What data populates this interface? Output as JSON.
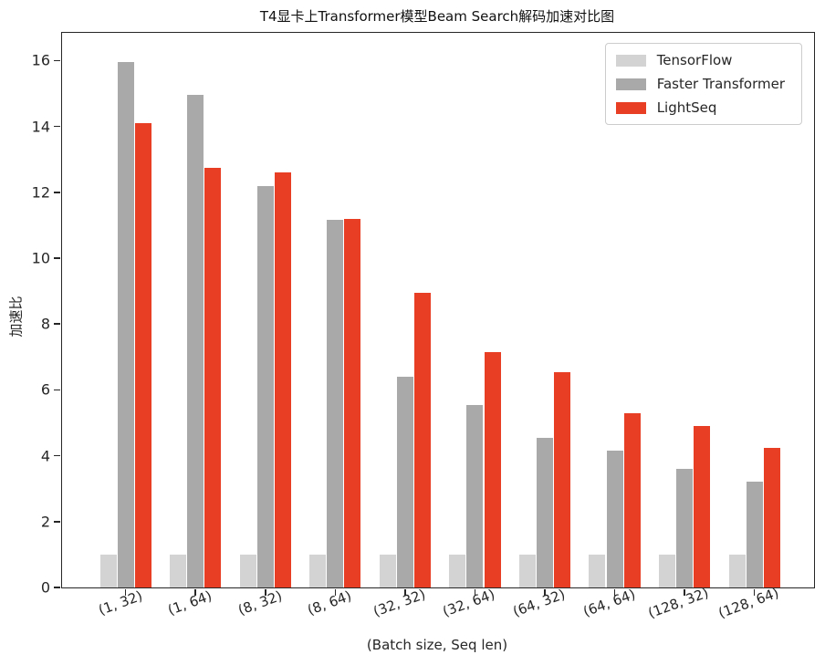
{
  "title": "T4显卡上Transformer模型Beam Search解码加速对比图",
  "axes": {
    "xlabel": "(Batch size, Seq len)",
    "ylabel": "加速比"
  },
  "legend": {
    "entries": [
      "TensorFlow",
      "Faster Transformer",
      "LightSeq"
    ]
  },
  "colors": {
    "tensorflow": "#d3d3d3",
    "faster_transformer": "#a9a9a9",
    "lightseq": "#e83e24",
    "axis": "#262626"
  },
  "chart_data": {
    "type": "bar",
    "title": "T4显卡上Transformer模型Beam Search解码加速对比图",
    "xlabel": "(Batch size, Seq len)",
    "ylabel": "加速比",
    "categories": [
      "(1, 32)",
      "(1, 64)",
      "(8, 32)",
      "(8, 64)",
      "(32, 32)",
      "(32, 64)",
      "(64, 32)",
      "(64, 64)",
      "(128, 32)",
      "(128, 64)"
    ],
    "series": [
      {
        "name": "TensorFlow",
        "color": "#d3d3d3",
        "values": [
          1.0,
          1.0,
          1.0,
          1.0,
          1.0,
          1.0,
          1.0,
          1.0,
          1.0,
          1.0
        ]
      },
      {
        "name": "Faster Transformer",
        "color": "#a9a9a9",
        "values": [
          15.95,
          14.95,
          12.2,
          11.15,
          6.4,
          5.55,
          4.55,
          4.15,
          3.6,
          3.2
        ]
      },
      {
        "name": "LightSeq",
        "color": "#e83e24",
        "values": [
          14.1,
          12.75,
          12.6,
          11.2,
          8.95,
          7.15,
          6.55,
          5.3,
          4.9,
          4.25
        ]
      }
    ],
    "yticks": [
      0,
      2,
      4,
      6,
      8,
      10,
      12,
      14,
      16
    ],
    "ylim": [
      0,
      16.84
    ],
    "grid": false,
    "legend_position": "upper right",
    "xtick_rotation_deg": 20
  }
}
